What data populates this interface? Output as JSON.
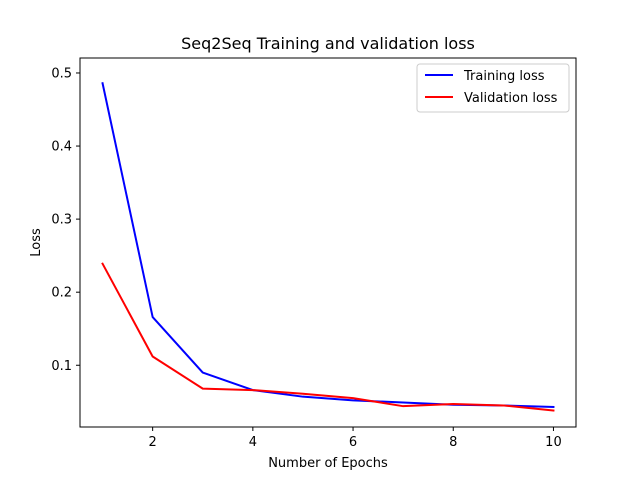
{
  "chart_data": {
    "type": "line",
    "title": "Seq2Seq Training and validation loss",
    "xlabel": "Number of Epochs",
    "ylabel": "Loss",
    "xlim": [
      0.55,
      10.45
    ],
    "ylim": [
      0.0155,
      0.5205
    ],
    "xticks": [
      2,
      4,
      6,
      8,
      10
    ],
    "yticks": [
      0.1,
      0.2,
      0.3,
      0.4,
      0.5
    ],
    "xtick_labels": [
      "2",
      "4",
      "6",
      "8",
      "10"
    ],
    "ytick_labels": [
      "0.1",
      "0.2",
      "0.3",
      "0.4",
      "0.5"
    ],
    "grid": false,
    "legend_position": "top-right",
    "x": [
      1,
      2,
      3,
      4,
      5,
      6,
      7,
      8,
      9,
      10
    ],
    "series": [
      {
        "name": "Training loss",
        "color": "#0000ff",
        "values": [
          0.486,
          0.166,
          0.09,
          0.066,
          0.057,
          0.052,
          0.049,
          0.046,
          0.045,
          0.043
        ]
      },
      {
        "name": "Validation loss",
        "color": "#ff0000",
        "values": [
          0.239,
          0.112,
          0.068,
          0.066,
          0.061,
          0.055,
          0.044,
          0.047,
          0.045,
          0.038
        ]
      }
    ]
  }
}
